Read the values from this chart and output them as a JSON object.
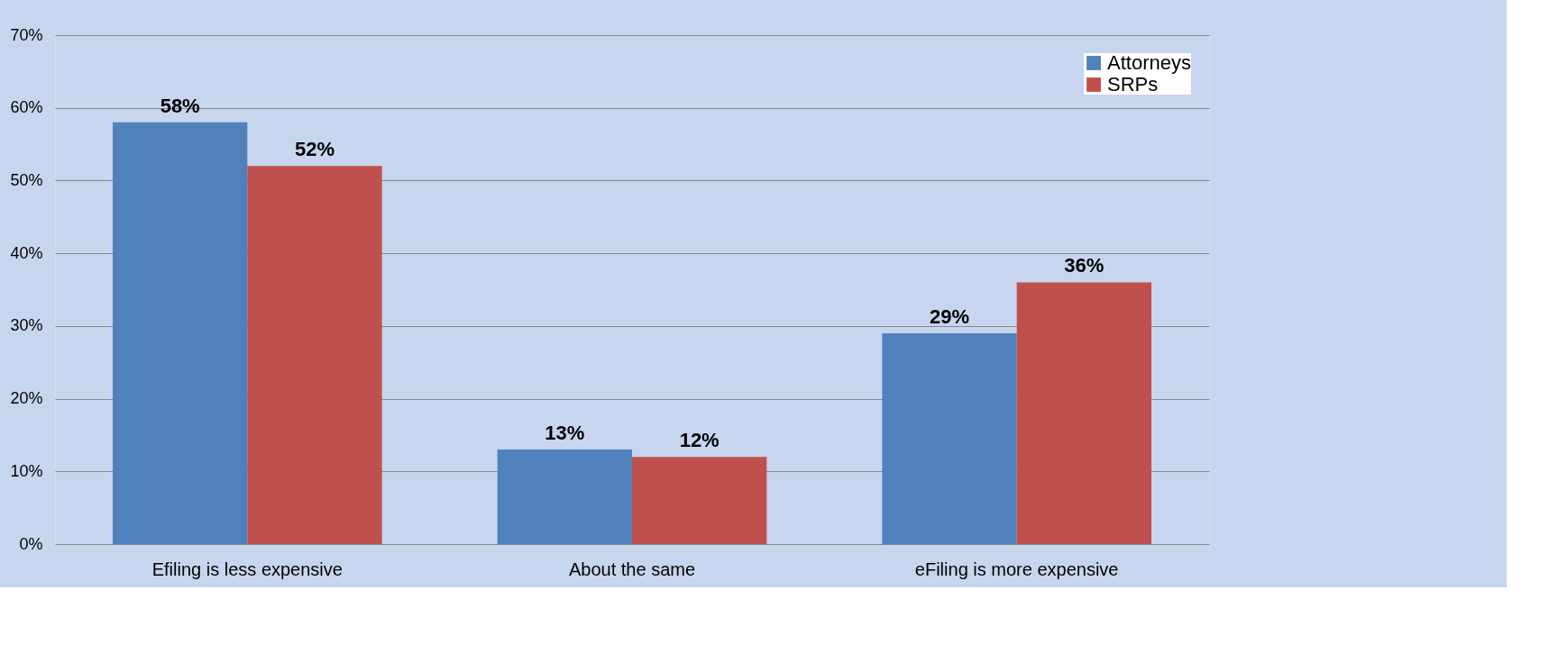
{
  "chart_data": {
    "type": "bar",
    "categories": [
      "Efiling is less expensive",
      "About the same",
      "eFiling is more expensive"
    ],
    "series": [
      {
        "name": "Attorneys",
        "color": "#4f81bd",
        "values": [
          58,
          13,
          29
        ],
        "value_labels": [
          "58%",
          "13%",
          "29%"
        ]
      },
      {
        "name": "SRPs",
        "color": "#c0504d",
        "values": [
          52,
          12,
          36
        ],
        "value_labels": [
          "52%",
          "12%",
          "36%"
        ]
      }
    ],
    "ylim": [
      0,
      70
    ],
    "yticks": [
      {
        "value": 0,
        "label": "0%"
      },
      {
        "value": 10,
        "label": "10%"
      },
      {
        "value": 20,
        "label": "20%"
      },
      {
        "value": 30,
        "label": "30%"
      },
      {
        "value": 40,
        "label": "40%"
      },
      {
        "value": 50,
        "label": "50%"
      },
      {
        "value": 60,
        "label": "60%"
      },
      {
        "value": 70,
        "label": "70%"
      }
    ],
    "grid": "y",
    "legend": "top right"
  }
}
